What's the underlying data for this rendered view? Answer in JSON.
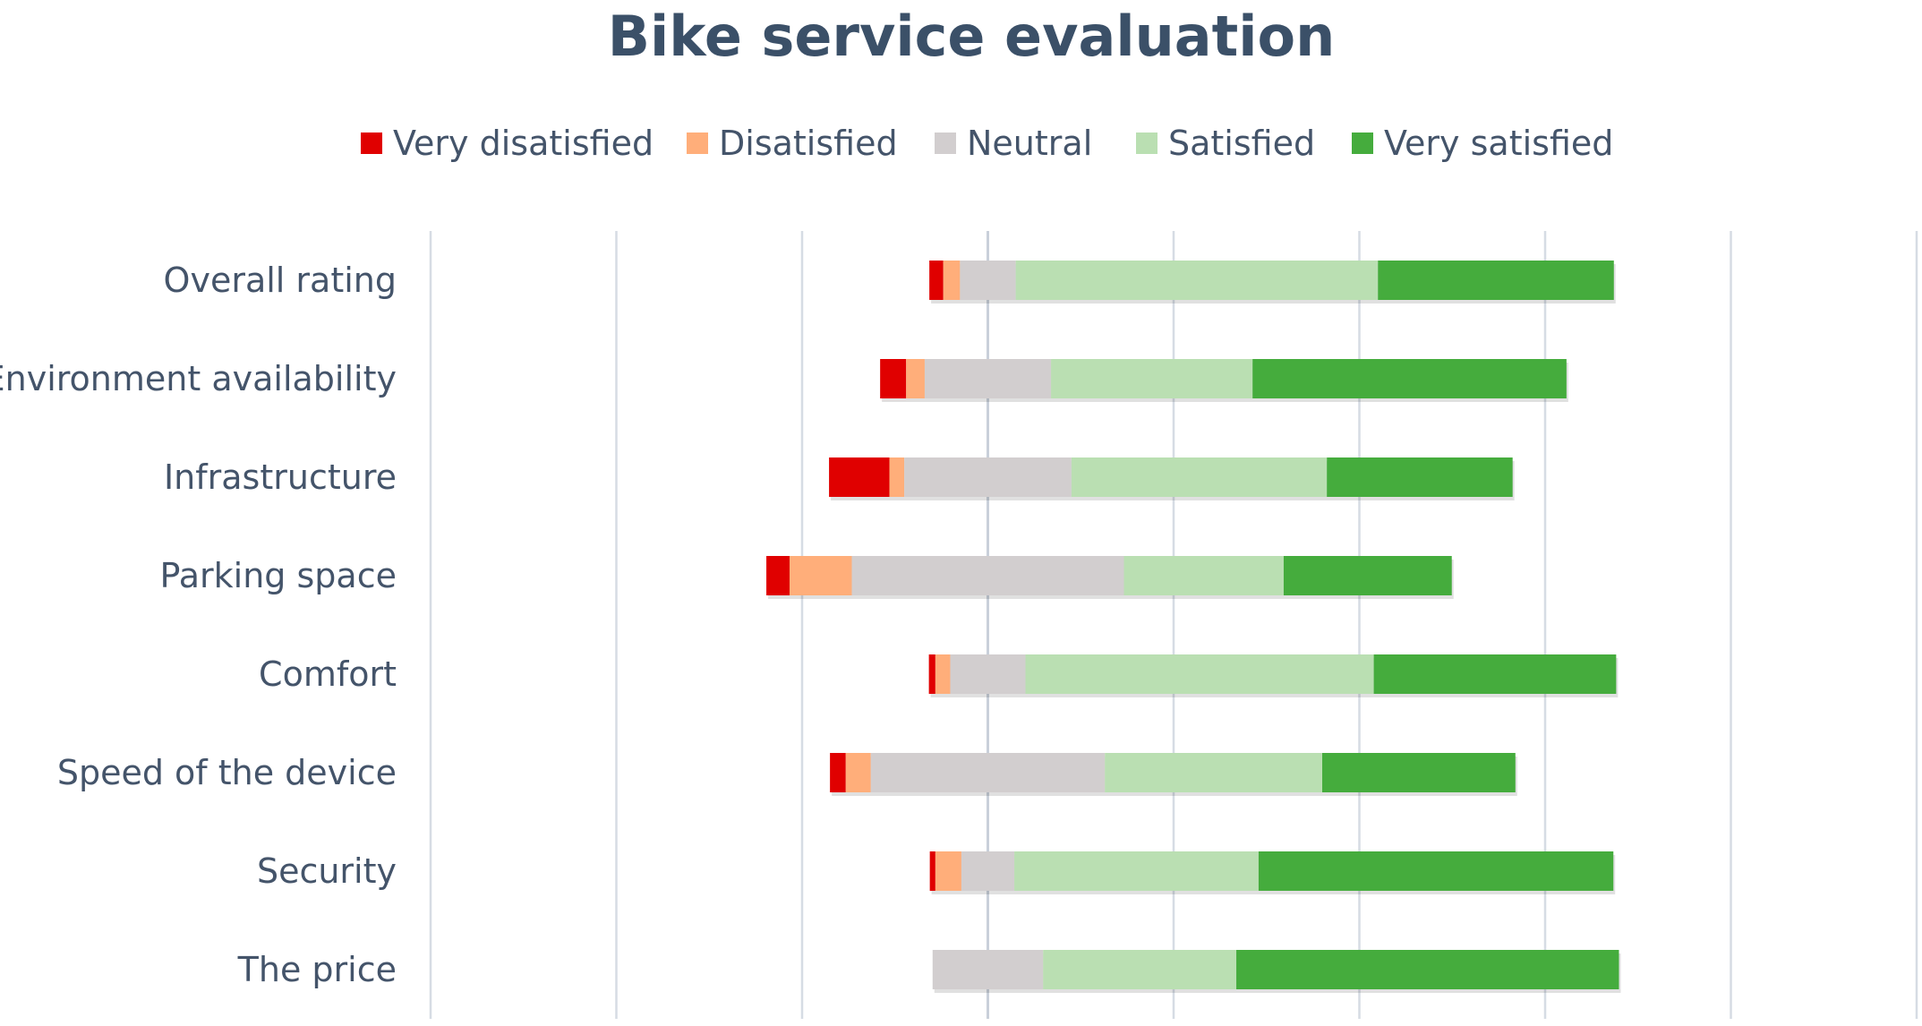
{
  "chart_data": {
    "type": "bar",
    "orientation": "horizontal",
    "stacked": "diverging",
    "title": "Bike service evaluation",
    "xlabel": "",
    "ylabel": "",
    "xlim": [
      -60,
      100
    ],
    "grid": true,
    "legend_position": "top",
    "categories": [
      "Overall rating",
      "Environment availability",
      "Infrastructure",
      "Parking space",
      "Comfort",
      "Speed of the device",
      "Security",
      "The price"
    ],
    "series": [
      {
        "name": "Very disatisfied",
        "color": "#e00000",
        "values": [
          1.5,
          2.8,
          6.5,
          2.5,
          0.7,
          1.7,
          0.6,
          0
        ]
      },
      {
        "name": "Disatisfied",
        "color": "#ffae7a",
        "values": [
          1.8,
          2.0,
          1.6,
          6.7,
          1.6,
          2.7,
          2.8,
          0
        ]
      },
      {
        "name": "Neutral",
        "color": "#d2cecf",
        "values": [
          6.0,
          13.6,
          18.0,
          29.3,
          8.1,
          25.2,
          5.7,
          11.9
        ]
      },
      {
        "name": "Satisfied",
        "color": "#badfb2",
        "values": [
          39.0,
          21.7,
          27.5,
          17.2,
          37.5,
          23.4,
          26.3,
          20.8
        ]
      },
      {
        "name": "Very satisfied",
        "color": "#45ac3d",
        "values": [
          25.4,
          33.8,
          20.0,
          18.1,
          26.1,
          20.8,
          38.2,
          41.2
        ]
      }
    ]
  }
}
